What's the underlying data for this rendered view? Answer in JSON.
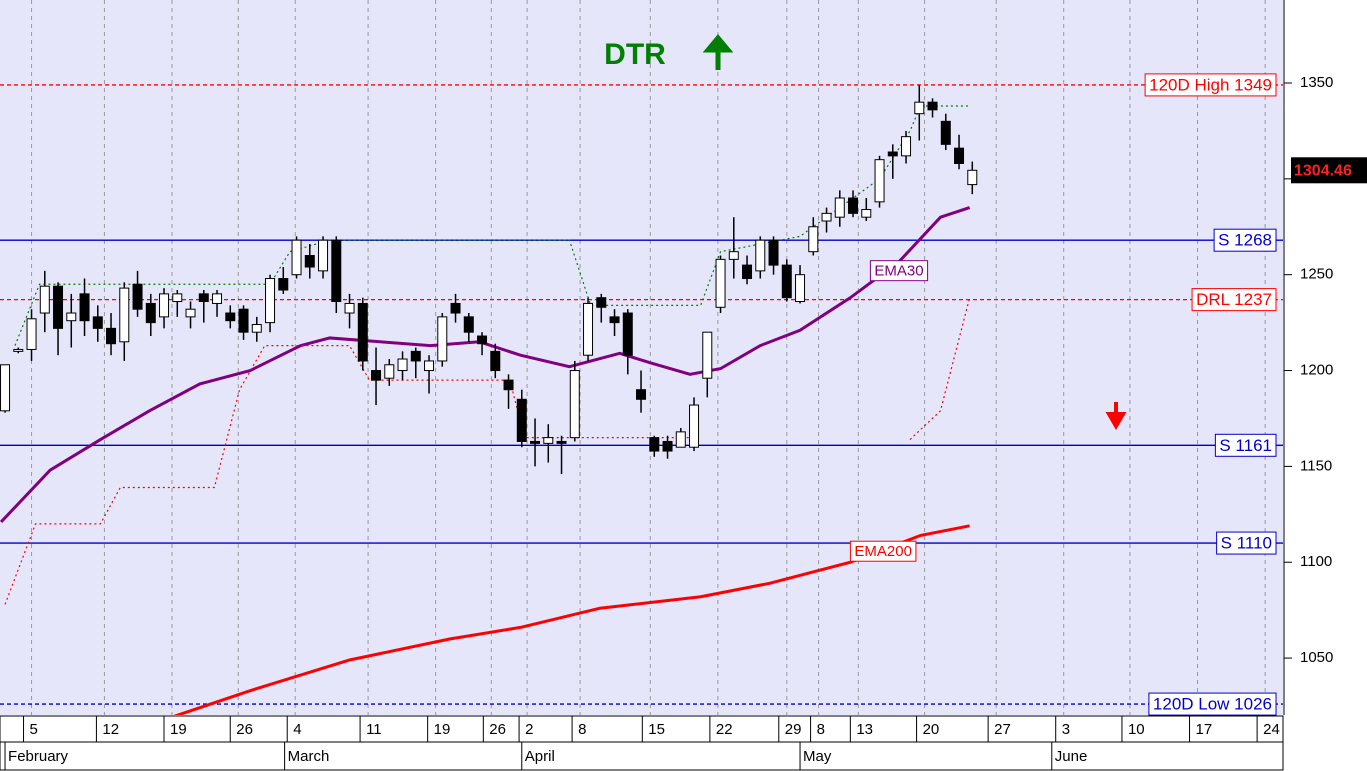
{
  "chart_data": {
    "type": "candlestick",
    "title": "DTR",
    "xlim": [
      -0.38,
      96.45
    ],
    "ylim": [
      1020.3,
      1393.3
    ],
    "yticks": [
      1050,
      1100,
      1150,
      1200,
      1250,
      1300,
      1350
    ],
    "xticks": [
      {
        "value": 2.0,
        "label": "5"
      },
      {
        "value": 7.5,
        "label": "12"
      },
      {
        "value": 12.6,
        "label": "19"
      },
      {
        "value": 17.6,
        "label": "26"
      },
      {
        "value": 21.9,
        "label": "4"
      },
      {
        "value": 27.4,
        "label": "11"
      },
      {
        "value": 32.5,
        "label": "19"
      },
      {
        "value": 36.7,
        "label": "26"
      },
      {
        "value": 39.4,
        "label": "2"
      },
      {
        "value": 43.4,
        "label": "8"
      },
      {
        "value": 48.7,
        "label": "15"
      },
      {
        "value": 53.8,
        "label": "22"
      },
      {
        "value": 59.0,
        "label": "29"
      },
      {
        "value": 61.4,
        "label": "8"
      },
      {
        "value": 64.4,
        "label": "13"
      },
      {
        "value": 69.4,
        "label": "20"
      },
      {
        "value": 74.8,
        "label": "27"
      },
      {
        "value": 79.9,
        "label": "3"
      },
      {
        "value": 84.9,
        "label": "10"
      },
      {
        "value": 90.0,
        "label": "17"
      },
      {
        "value": 95.1,
        "label": "24"
      }
    ],
    "months": [
      {
        "value": 0,
        "label": "February"
      },
      {
        "value": 21.1,
        "label": "March"
      },
      {
        "value": 39.0,
        "label": "April"
      },
      {
        "value": 60.0,
        "label": "May"
      },
      {
        "value": 79.0,
        "label": "June"
      }
    ],
    "grid": true,
    "up_color": "#ffffff",
    "down_color": "#000000",
    "candles": {
      "x": [
        0,
        1,
        2,
        3,
        4,
        5,
        6,
        7,
        8,
        9,
        10,
        11,
        12,
        13,
        14,
        15,
        16,
        17,
        18,
        19,
        20,
        21,
        22,
        23,
        24,
        25,
        26,
        27,
        28,
        29,
        30,
        31,
        32,
        33,
        34,
        35,
        36,
        37,
        38,
        39,
        40,
        41,
        42,
        43,
        44,
        45,
        46,
        47,
        48,
        49,
        50,
        51,
        52,
        53,
        54,
        55,
        56,
        57,
        58,
        59,
        60,
        61,
        62,
        63,
        64,
        65,
        66,
        67,
        68,
        69,
        70,
        71,
        72,
        73
      ],
      "open": [
        1179,
        1210,
        1211,
        1230,
        1244,
        1226,
        1240,
        1228,
        1222,
        1215,
        1245,
        1235,
        1228,
        1236,
        1228,
        1240,
        1235,
        1230,
        1232,
        1220,
        1225,
        1248,
        1250,
        1260,
        1252,
        1268,
        1230,
        1235,
        1200,
        1196,
        1200,
        1210,
        1200,
        1205,
        1235,
        1228,
        1218,
        1210,
        1195,
        1185,
        1163,
        1162,
        1163,
        1165,
        1208,
        1238,
        1228,
        1230,
        1190,
        1165,
        1163,
        1160,
        1160,
        1196,
        1233,
        1258,
        1255,
        1252,
        1268,
        1255,
        1236,
        1262,
        1278,
        1280,
        1290,
        1280,
        1288,
        1314,
        1312,
        1334,
        1340,
        1330,
        1316,
        1297
      ],
      "high": [
        1203,
        1212,
        1232,
        1252,
        1246,
        1240,
        1248,
        1234,
        1230,
        1246,
        1252,
        1240,
        1243,
        1242,
        1236,
        1242,
        1242,
        1234,
        1234,
        1228,
        1250,
        1254,
        1270,
        1266,
        1270,
        1270,
        1240,
        1238,
        1212,
        1206,
        1210,
        1212,
        1208,
        1230,
        1240,
        1230,
        1220,
        1214,
        1198,
        1190,
        1175,
        1172,
        1166,
        1205,
        1238,
        1240,
        1232,
        1232,
        1200,
        1166,
        1166,
        1170,
        1186,
        1220,
        1260,
        1280,
        1260,
        1270,
        1270,
        1258,
        1255,
        1280,
        1285,
        1294,
        1294,
        1290,
        1312,
        1318,
        1325,
        1349,
        1342,
        1334,
        1323,
        1309
      ],
      "low": [
        1178,
        1209,
        1205,
        1220,
        1208,
        1212,
        1218,
        1215,
        1208,
        1205,
        1228,
        1218,
        1222,
        1228,
        1222,
        1225,
        1228,
        1222,
        1216,
        1215,
        1220,
        1240,
        1248,
        1248,
        1248,
        1230,
        1222,
        1200,
        1182,
        1192,
        1195,
        1196,
        1188,
        1202,
        1225,
        1215,
        1208,
        1196,
        1180,
        1160,
        1150,
        1152,
        1146,
        1163,
        1205,
        1225,
        1218,
        1198,
        1178,
        1155,
        1154,
        1160,
        1158,
        1186,
        1230,
        1248,
        1245,
        1248,
        1250,
        1236,
        1235,
        1260,
        1272,
        1275,
        1280,
        1278,
        1285,
        1300,
        1308,
        1320,
        1332,
        1315,
        1305,
        1292
      ],
      "close": [
        1203,
        1211,
        1227,
        1244,
        1222,
        1230,
        1226,
        1222,
        1214,
        1243,
        1232,
        1225,
        1240,
        1240,
        1232,
        1236,
        1240,
        1226,
        1220,
        1224,
        1248,
        1242,
        1268,
        1254,
        1268,
        1236,
        1235,
        1205,
        1195,
        1203,
        1206,
        1205,
        1205,
        1228,
        1230,
        1220,
        1214,
        1200,
        1190,
        1163,
        1162,
        1165,
        1162,
        1200,
        1235,
        1233,
        1225,
        1208,
        1185,
        1158,
        1158,
        1168,
        1182,
        1220,
        1258,
        1262,
        1248,
        1268,
        1255,
        1238,
        1250,
        1275,
        1282,
        1290,
        1282,
        1284,
        1310,
        1312,
        1322,
        1340,
        1336,
        1318,
        1308,
        1304.46
      ]
    },
    "series": [
      {
        "name": "EMA30",
        "color": "#800080",
        "width": 3,
        "x": [
          -0.3,
          3.4,
          7.2,
          10.9,
          14.7,
          18.5,
          22.3,
          24.5,
          28.3,
          32.1,
          35.8,
          38.9,
          42.6,
          46.4,
          48.7,
          51.7,
          54.0,
          57.0,
          60.0,
          63.8,
          67.5,
          70.6,
          72.8
        ],
        "values": [
          1121,
          1148,
          1164,
          1179,
          1193,
          1200,
          1213,
          1217,
          1215,
          1213,
          1215,
          1208,
          1202,
          1209,
          1204,
          1198,
          1201,
          1213,
          1221,
          1238,
          1257,
          1280,
          1285
        ]
      },
      {
        "name": "EMA200",
        "color": "#ff0000",
        "width": 3,
        "x": [
          12.5,
          18.5,
          26.0,
          33.6,
          38.9,
          44.9,
          52.5,
          57.7,
          63.8,
          69.1,
          72.8
        ],
        "values": [
          1019,
          1033,
          1049,
          1060,
          1066,
          1076,
          1082,
          1089,
          1100,
          1114,
          1119
        ]
      },
      {
        "color": "#008000",
        "dotted": true,
        "x": [
          0.75,
          2.6,
          20,
          21.5,
          24.5,
          42.6,
          44.2,
          52.5,
          54,
          60,
          63,
          66,
          68.3,
          69.1,
          72.8
        ],
        "values": [
          1213,
          1245,
          1245,
          1262,
          1268,
          1268,
          1234,
          1234,
          1262,
          1270,
          1285,
          1300,
          1325,
          1338,
          1338
        ]
      },
      {
        "color": "#ff0000",
        "dotted": true,
        "x": [
          0,
          2.3,
          7.2,
          8.7,
          15.8,
          17.7,
          19.6,
          26,
          27.5,
          38.1,
          39.2,
          51.7,
          null,
          68.3,
          70.6,
          72.8
        ],
        "values": [
          1078,
          1120,
          1120,
          1139,
          1139,
          1190,
          1213,
          1213,
          1195,
          1195,
          1165,
          1165,
          null,
          1164,
          1179,
          1238
        ]
      }
    ],
    "levels": [
      {
        "label": "120D High 1349",
        "value": 1349,
        "color": "#ff0000",
        "dashed": true
      },
      {
        "label": "S 1268",
        "value": 1268,
        "color": "#0000cc",
        "dashed": false
      },
      {
        "label": "DRL 1237",
        "value": 1237,
        "color": "#ff0000",
        "dashed": true
      },
      {
        "label": "S 1161",
        "value": 1161,
        "color": "#0000cc",
        "dashed": false
      },
      {
        "label": "S 1110",
        "value": 1110,
        "color": "#0000cc",
        "dashed": false
      },
      {
        "label": "120D Low 1026",
        "value": 1026,
        "color": "#0000cc",
        "dashed": true
      }
    ],
    "last_price": {
      "value": 1304.46,
      "label": "1304.46"
    }
  }
}
